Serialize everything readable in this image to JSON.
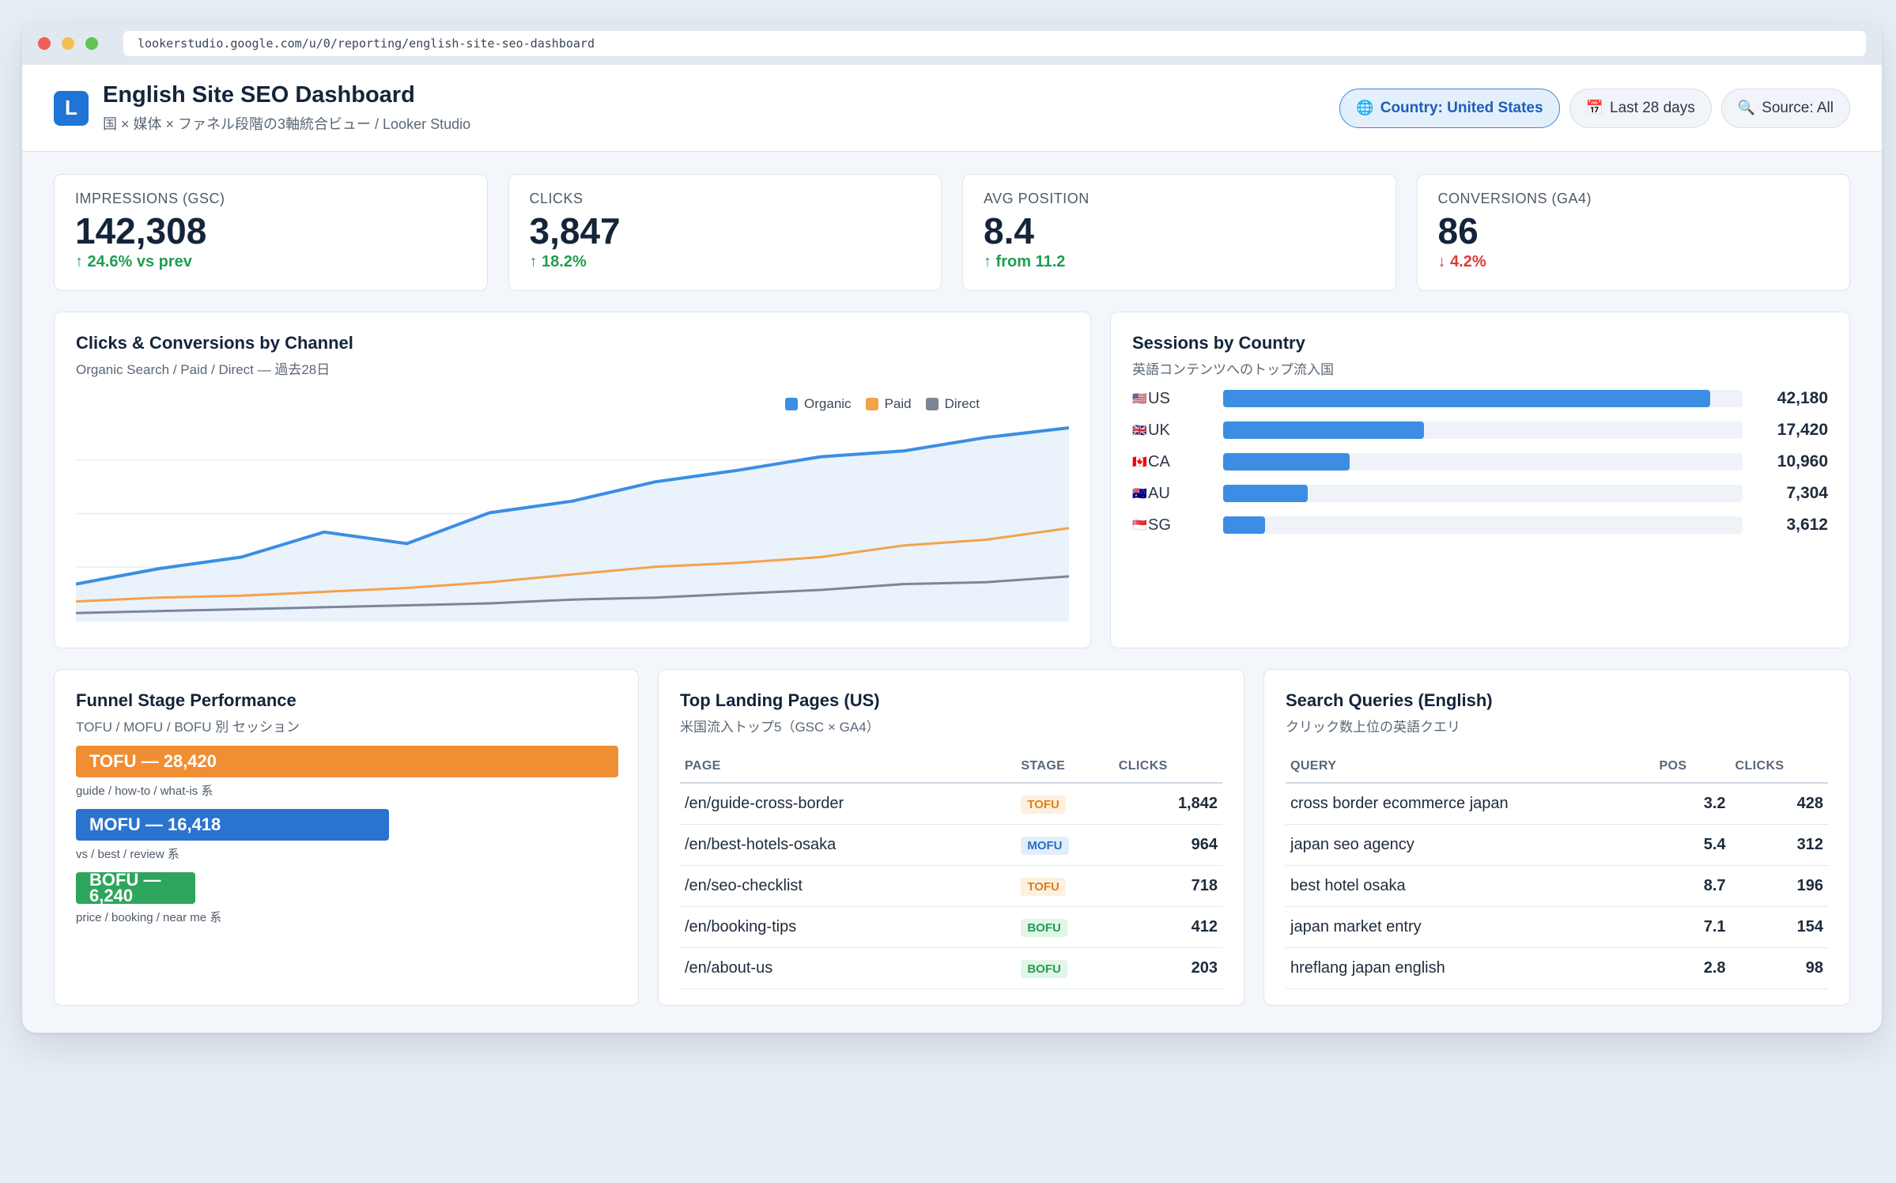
{
  "browser": {
    "url": "lookerstudio.google.com/u/0/reporting/english-site-seo-dashboard"
  },
  "header": {
    "logo_letter": "L",
    "title": "English Site SEO Dashboard",
    "subtitle": "国 × 媒体 × ファネル段階の3軸統合ビュー / Looker Studio",
    "filters": [
      {
        "icon": "🌐",
        "label": "Country: United States",
        "active": true
      },
      {
        "icon": "📅",
        "label": "Last 28 days",
        "active": false
      },
      {
        "icon": "🔍",
        "label": "Source: All",
        "active": false
      }
    ]
  },
  "kpis": [
    {
      "label": "IMPRESSIONS (GSC)",
      "value": "142,308",
      "delta": "↑ 24.6% vs prev",
      "trend": "up"
    },
    {
      "label": "CLICKS",
      "value": "3,847",
      "delta": "↑ 18.2%",
      "trend": "up"
    },
    {
      "label": "AVG POSITION",
      "value": "8.4",
      "delta": "↑ from 11.2",
      "trend": "up"
    },
    {
      "label": "CONVERSIONS (GA4)",
      "value": "86",
      "delta": "↓ 4.2%",
      "trend": "down"
    }
  ],
  "channel_chart": {
    "title": "Clicks & Conversions by Channel",
    "subtitle": "Organic Search / Paid / Direct — 過去28日"
  },
  "chart_data": {
    "type": "line",
    "x": [
      1,
      2,
      3,
      4,
      5,
      6,
      7,
      8,
      9,
      10,
      11,
      12,
      13
    ],
    "ylim": [
      0,
      100
    ],
    "grid": true,
    "legend": "top-right",
    "series": [
      {
        "name": "Organic",
        "color": "#3b8ee3",
        "values": [
          19,
          27,
          33,
          46,
          40,
          56,
          62,
          72,
          78,
          85,
          88,
          95,
          100
        ],
        "fill": true
      },
      {
        "name": "Paid",
        "color": "#f4a24a",
        "values": [
          10,
          12,
          13,
          15,
          17,
          20,
          24,
          28,
          30,
          33,
          39,
          42,
          48
        ]
      },
      {
        "name": "Direct",
        "color": "#7d8696",
        "values": [
          4,
          5,
          6,
          7,
          8,
          9,
          11,
          12,
          14,
          16,
          19,
          20,
          23
        ]
      }
    ]
  },
  "country_chart": {
    "title": "Sessions by Country",
    "subtitle": "英語コンテンツへのトップ流入国",
    "max": 45000,
    "rows": [
      {
        "flag": "🇺🇸",
        "name": "US",
        "value": 42180,
        "label": "42,180"
      },
      {
        "flag": "🇬🇧",
        "name": "UK",
        "value": 17420,
        "label": "17,420"
      },
      {
        "flag": "🇨🇦",
        "name": "CA",
        "value": 10960,
        "label": "10,960"
      },
      {
        "flag": "🇦🇺",
        "name": "AU",
        "value": 7304,
        "label": "7,304"
      },
      {
        "flag": "🇸🇬",
        "name": "SG",
        "value": 3612,
        "label": "3,612"
      }
    ]
  },
  "funnel": {
    "title": "Funnel Stage Performance",
    "subtitle": "TOFU / MOFU / BOFU 別 セッション",
    "max": 28420,
    "stages": [
      {
        "label": "TOFU — 28,420",
        "value": 28420,
        "note": "guide / how-to / what-is 系",
        "color": "#f08e33"
      },
      {
        "label": "MOFU — 16,418",
        "value": 16418,
        "note": "vs / best / review 系",
        "color": "#2a74cf"
      },
      {
        "label": "BOFU — 6,240",
        "value": 6240,
        "note": "price / booking / near me 系",
        "color": "#2ea55d"
      }
    ]
  },
  "landing": {
    "title": "Top Landing Pages (US)",
    "subtitle": "米国流入トップ5（GSC × GA4）",
    "headers": [
      "PAGE",
      "STAGE",
      "CLICKS"
    ],
    "rows": [
      {
        "page": "/en/guide-cross-border",
        "stage": "TOFU",
        "clicks": "1,842"
      },
      {
        "page": "/en/best-hotels-osaka",
        "stage": "MOFU",
        "clicks": "964"
      },
      {
        "page": "/en/seo-checklist",
        "stage": "TOFU",
        "clicks": "718"
      },
      {
        "page": "/en/booking-tips",
        "stage": "BOFU",
        "clicks": "412"
      },
      {
        "page": "/en/about-us",
        "stage": "BOFU",
        "clicks": "203"
      }
    ]
  },
  "queries": {
    "title": "Search Queries (English)",
    "subtitle": "クリック数上位の英語クエリ",
    "headers": [
      "QUERY",
      "POS",
      "CLICKS"
    ],
    "rows": [
      {
        "query": "cross border ecommerce japan",
        "pos": "3.2",
        "clicks": "428"
      },
      {
        "query": "japan seo agency",
        "pos": "5.4",
        "clicks": "312"
      },
      {
        "query": "best hotel osaka",
        "pos": "8.7",
        "clicks": "196"
      },
      {
        "query": "japan market entry",
        "pos": "7.1",
        "clicks": "154"
      },
      {
        "query": "hreflang japan english",
        "pos": "2.8",
        "clicks": "98"
      }
    ]
  }
}
